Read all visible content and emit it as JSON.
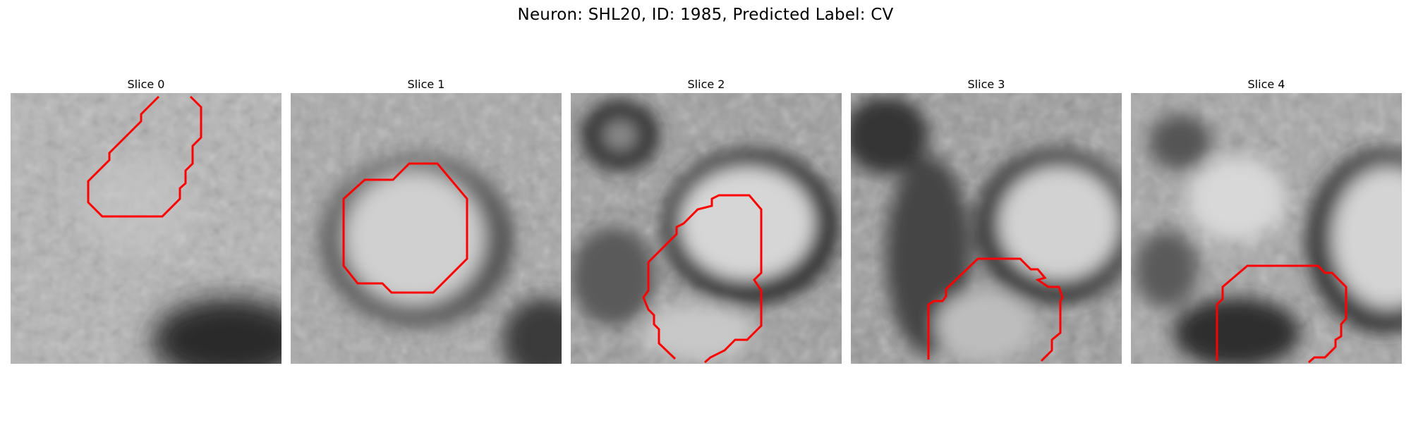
{
  "figure": {
    "title": "Neuron: SHL20, ID: 1985, Predicted Label: CV"
  },
  "panels": [
    {
      "title": "Slice 0"
    },
    {
      "title": "Slice 1"
    },
    {
      "title": "Slice 2"
    },
    {
      "title": "Slice 3"
    },
    {
      "title": "Slice 4"
    }
  ],
  "colors": {
    "contour": "#ff0000"
  }
}
